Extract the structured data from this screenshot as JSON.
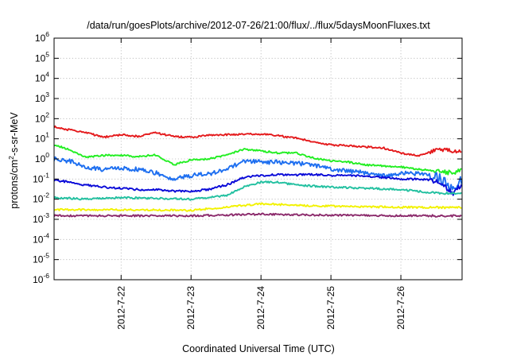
{
  "chart_data": {
    "type": "line",
    "title": "/data/run/goesPlots/archive/2012-07-26/21:00/flux/../flux/5daysMoonFluxes.txt",
    "xlabel": "Coordinated Universal Time (UTC)",
    "ylabel": {
      "prefix": "protons/cm",
      "sup": "2",
      "suffix": "-s-sr-MeV"
    },
    "y_scale": "log",
    "ylim": [
      1e-06,
      1000000.0
    ],
    "y_ticks": [
      {
        "base": "10",
        "exp": "-6",
        "value": 1e-06
      },
      {
        "base": "10",
        "exp": "-5",
        "value": 1e-05
      },
      {
        "base": "10",
        "exp": "-4",
        "value": 0.0001
      },
      {
        "base": "10",
        "exp": "-3",
        "value": 0.001
      },
      {
        "base": "10",
        "exp": "-2",
        "value": 0.01
      },
      {
        "base": "10",
        "exp": "-1",
        "value": 0.1
      },
      {
        "base": "10",
        "exp": "0",
        "value": 1
      },
      {
        "base": "10",
        "exp": "1",
        "value": 10
      },
      {
        "base": "10",
        "exp": "2",
        "value": 100
      },
      {
        "base": "10",
        "exp": "3",
        "value": 1000
      },
      {
        "base": "10",
        "exp": "4",
        "value": 10000
      },
      {
        "base": "10",
        "exp": "5",
        "value": 100000
      },
      {
        "base": "10",
        "exp": "6",
        "value": 1000000
      }
    ],
    "xlim": [
      "2012-07-21 01:00",
      "2012-07-26 21:00"
    ],
    "x_ticks": [
      {
        "label": "2012-7-22",
        "time": "2012-07-22 00:00"
      },
      {
        "label": "2012-7-23",
        "time": "2012-07-23 00:00"
      },
      {
        "label": "2012-7-24",
        "time": "2012-07-24 00:00"
      },
      {
        "label": "2012-7-25",
        "time": "2012-07-25 00:00"
      },
      {
        "label": "2012-7-26",
        "time": "2012-07-26 00:00"
      }
    ],
    "grid": true,
    "legend": "none",
    "series": [
      {
        "color": "#e41a1c",
        "points": [
          [
            "2012-07-21 01:00",
            40
          ],
          [
            "2012-07-21 06:00",
            28
          ],
          [
            "2012-07-21 12:00",
            20
          ],
          [
            "2012-07-21 18:00",
            12
          ],
          [
            "2012-07-22 00:00",
            16
          ],
          [
            "2012-07-22 06:00",
            13
          ],
          [
            "2012-07-22 12:00",
            20
          ],
          [
            "2012-07-22 18:00",
            13
          ],
          [
            "2012-07-23 00:00",
            12
          ],
          [
            "2012-07-23 06:00",
            15
          ],
          [
            "2012-07-23 12:00",
            16
          ],
          [
            "2012-07-23 18:00",
            17
          ],
          [
            "2012-07-24 00:00",
            17
          ],
          [
            "2012-07-24 06:00",
            14
          ],
          [
            "2012-07-24 12:00",
            11
          ],
          [
            "2012-07-24 18:00",
            7
          ],
          [
            "2012-07-25 00:00",
            5
          ],
          [
            "2012-07-25 06:00",
            4.5
          ],
          [
            "2012-07-25 12:00",
            4
          ],
          [
            "2012-07-25 18:00",
            3.5
          ],
          [
            "2012-07-26 00:00",
            2
          ],
          [
            "2012-07-26 06:00",
            1.4
          ],
          [
            "2012-07-26 12:00",
            3
          ],
          [
            "2012-07-26 18:00",
            2.5
          ],
          [
            "2012-07-26 21:00",
            2.2
          ]
        ]
      },
      {
        "color": "#22ee22",
        "points": [
          [
            "2012-07-21 01:00",
            5
          ],
          [
            "2012-07-21 06:00",
            3
          ],
          [
            "2012-07-21 12:00",
            1.2
          ],
          [
            "2012-07-21 18:00",
            1.5
          ],
          [
            "2012-07-22 00:00",
            1.5
          ],
          [
            "2012-07-22 06:00",
            1.3
          ],
          [
            "2012-07-22 12:00",
            1.6
          ],
          [
            "2012-07-22 18:00",
            0.5
          ],
          [
            "2012-07-23 00:00",
            0.9
          ],
          [
            "2012-07-23 06:00",
            1.0
          ],
          [
            "2012-07-23 12:00",
            1.5
          ],
          [
            "2012-07-23 18:00",
            3
          ],
          [
            "2012-07-24 00:00",
            2.5
          ],
          [
            "2012-07-24 06:00",
            2.0
          ],
          [
            "2012-07-24 12:00",
            2.0
          ],
          [
            "2012-07-24 18:00",
            1.1
          ],
          [
            "2012-07-25 00:00",
            0.8
          ],
          [
            "2012-07-25 06:00",
            0.7
          ],
          [
            "2012-07-25 12:00",
            0.5
          ],
          [
            "2012-07-25 18:00",
            0.45
          ],
          [
            "2012-07-26 00:00",
            0.4
          ],
          [
            "2012-07-26 06:00",
            0.3
          ],
          [
            "2012-07-26 12:00",
            0.25
          ],
          [
            "2012-07-26 18:00",
            0.2
          ],
          [
            "2012-07-26 21:00",
            0.3
          ]
        ]
      },
      {
        "color": "#1e6ff0",
        "points": [
          [
            "2012-07-21 01:00",
            1.0
          ],
          [
            "2012-07-21 06:00",
            0.8
          ],
          [
            "2012-07-21 12:00",
            0.4
          ],
          [
            "2012-07-21 18:00",
            0.3
          ],
          [
            "2012-07-22 00:00",
            0.35
          ],
          [
            "2012-07-22 06:00",
            0.3
          ],
          [
            "2012-07-22 12:00",
            0.2
          ],
          [
            "2012-07-22 18:00",
            0.1
          ],
          [
            "2012-07-23 00:00",
            0.15
          ],
          [
            "2012-07-23 06:00",
            0.18
          ],
          [
            "2012-07-23 12:00",
            0.3
          ],
          [
            "2012-07-23 18:00",
            0.8
          ],
          [
            "2012-07-24 00:00",
            0.7
          ],
          [
            "2012-07-24 06:00",
            0.7
          ],
          [
            "2012-07-24 12:00",
            0.6
          ],
          [
            "2012-07-24 18:00",
            0.5
          ],
          [
            "2012-07-25 00:00",
            0.3
          ],
          [
            "2012-07-25 06:00",
            0.25
          ],
          [
            "2012-07-25 12:00",
            0.2
          ],
          [
            "2012-07-25 18:00",
            0.15
          ],
          [
            "2012-07-26 00:00",
            0.2
          ],
          [
            "2012-07-26 06:00",
            0.18
          ],
          [
            "2012-07-26 12:00",
            0.15
          ],
          [
            "2012-07-26 18:00",
            0.03
          ],
          [
            "2012-07-26 21:00",
            0.1
          ]
        ]
      },
      {
        "color": "#0a0ad8",
        "points": [
          [
            "2012-07-21 01:00",
            0.09
          ],
          [
            "2012-07-21 06:00",
            0.07
          ],
          [
            "2012-07-21 12:00",
            0.05
          ],
          [
            "2012-07-21 18:00",
            0.04
          ],
          [
            "2012-07-22 00:00",
            0.035
          ],
          [
            "2012-07-22 06:00",
            0.03
          ],
          [
            "2012-07-22 12:00",
            0.03
          ],
          [
            "2012-07-22 18:00",
            0.025
          ],
          [
            "2012-07-23 00:00",
            0.025
          ],
          [
            "2012-07-23 06:00",
            0.03
          ],
          [
            "2012-07-23 12:00",
            0.05
          ],
          [
            "2012-07-23 18:00",
            0.12
          ],
          [
            "2012-07-24 00:00",
            0.15
          ],
          [
            "2012-07-24 06:00",
            0.17
          ],
          [
            "2012-07-24 12:00",
            0.16
          ],
          [
            "2012-07-24 18:00",
            0.17
          ],
          [
            "2012-07-25 00:00",
            0.15
          ],
          [
            "2012-07-25 06:00",
            0.15
          ],
          [
            "2012-07-25 12:00",
            0.14
          ],
          [
            "2012-07-25 18:00",
            0.12
          ],
          [
            "2012-07-26 00:00",
            0.1
          ],
          [
            "2012-07-26 06:00",
            0.1
          ],
          [
            "2012-07-26 12:00",
            0.08
          ],
          [
            "2012-07-26 18:00",
            0.02
          ],
          [
            "2012-07-26 21:00",
            0.06
          ]
        ]
      },
      {
        "color": "#22c0a0",
        "points": [
          [
            "2012-07-21 01:00",
            0.012
          ],
          [
            "2012-07-21 12:00",
            0.01
          ],
          [
            "2012-07-22 00:00",
            0.012
          ],
          [
            "2012-07-22 12:00",
            0.011
          ],
          [
            "2012-07-23 00:00",
            0.01
          ],
          [
            "2012-07-23 12:00",
            0.015
          ],
          [
            "2012-07-23 18:00",
            0.04
          ],
          [
            "2012-07-24 00:00",
            0.07
          ],
          [
            "2012-07-24 06:00",
            0.07
          ],
          [
            "2012-07-24 12:00",
            0.05
          ],
          [
            "2012-07-25 00:00",
            0.04
          ],
          [
            "2012-07-25 12:00",
            0.035
          ],
          [
            "2012-07-26 00:00",
            0.03
          ],
          [
            "2012-07-26 12:00",
            0.02
          ],
          [
            "2012-07-26 21:00",
            0.02
          ]
        ]
      },
      {
        "color": "#f2f200",
        "points": [
          [
            "2012-07-21 01:00",
            0.003
          ],
          [
            "2012-07-22 00:00",
            0.003
          ],
          [
            "2012-07-23 00:00",
            0.0028
          ],
          [
            "2012-07-23 12:00",
            0.004
          ],
          [
            "2012-07-24 00:00",
            0.006
          ],
          [
            "2012-07-24 12:00",
            0.005
          ],
          [
            "2012-07-25 00:00",
            0.0045
          ],
          [
            "2012-07-26 00:00",
            0.004
          ],
          [
            "2012-07-26 21:00",
            0.0038
          ]
        ]
      },
      {
        "color": "#8b2a6b",
        "points": [
          [
            "2012-07-21 01:00",
            0.0015
          ],
          [
            "2012-07-22 00:00",
            0.0015
          ],
          [
            "2012-07-23 00:00",
            0.0015
          ],
          [
            "2012-07-24 00:00",
            0.0018
          ],
          [
            "2012-07-25 00:00",
            0.0016
          ],
          [
            "2012-07-26 00:00",
            0.0015
          ],
          [
            "2012-07-26 21:00",
            0.0015
          ]
        ]
      }
    ]
  }
}
